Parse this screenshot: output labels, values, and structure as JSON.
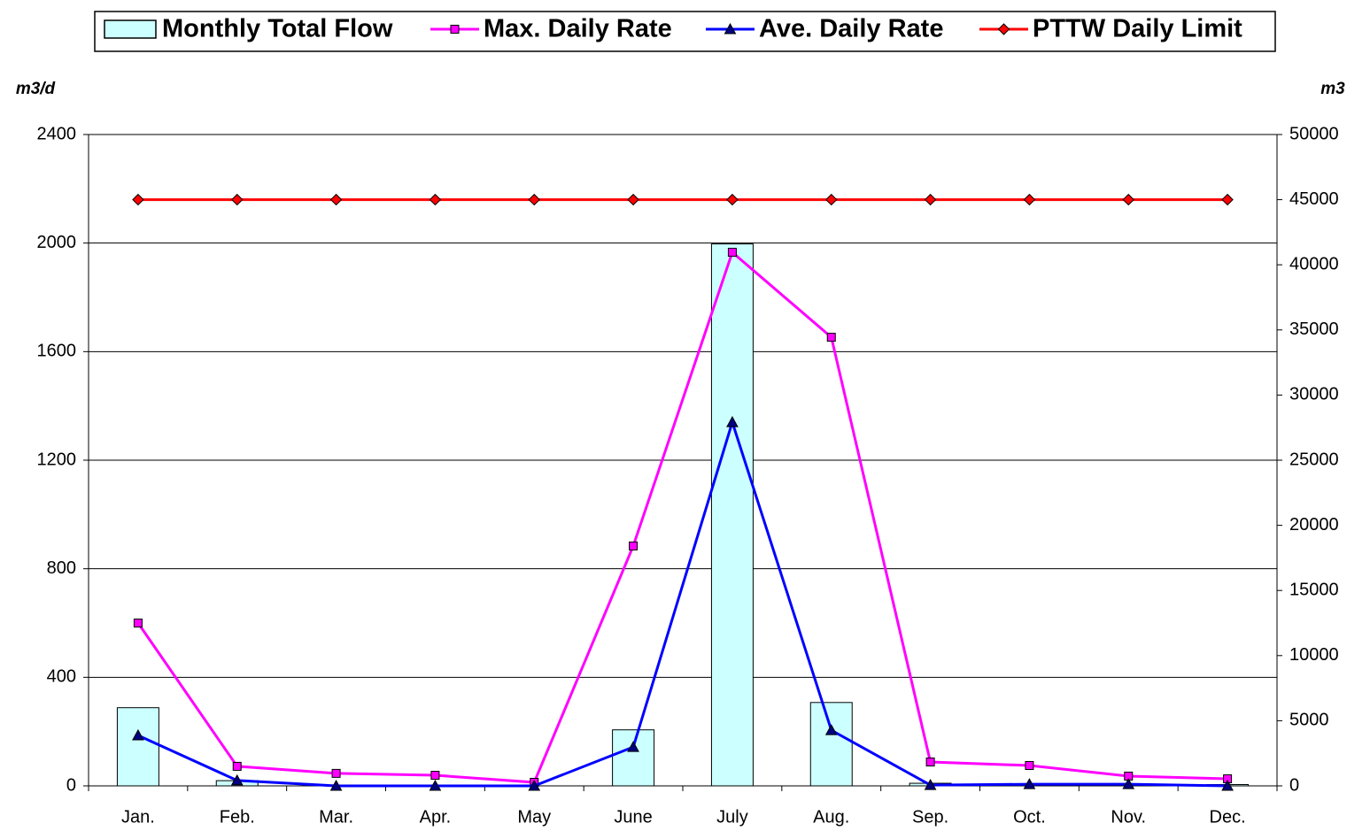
{
  "chart_data": {
    "type": "combo",
    "categories": [
      "Jan.",
      "Feb.",
      "Mar.",
      "Apr.",
      "May",
      "June",
      "July",
      "Aug.",
      "Sep.",
      "Oct.",
      "Nov.",
      "Dec."
    ],
    "y_label": "m3/d",
    "y2_label": "m3",
    "ylim": [
      0,
      2400
    ],
    "yticks": [
      0,
      400,
      800,
      1200,
      1600,
      2000,
      2400
    ],
    "y2lim": [
      0,
      50000
    ],
    "y2ticks": [
      0,
      5000,
      10000,
      15000,
      20000,
      25000,
      30000,
      35000,
      40000,
      45000,
      50000
    ],
    "grid": true,
    "series": [
      {
        "name": "Monthly Total Flow",
        "type": "bar",
        "axis": "y2",
        "color": "#ccffff",
        "values": [
          6000,
          400,
          50,
          0,
          0,
          4300,
          41600,
          6400,
          200,
          0,
          0,
          100
        ]
      },
      {
        "name": "Max. Daily Rate",
        "type": "line",
        "marker": "square",
        "color": "#ff00ff",
        "values": [
          600,
          72,
          46,
          39,
          13,
          884,
          1966,
          1653,
          88,
          75,
          36,
          26
        ]
      },
      {
        "name": "Ave. Daily Rate",
        "type": "line",
        "marker": "triangle",
        "color": "#0000ff",
        "values": [
          186,
          20,
          0,
          0,
          0,
          143,
          1340,
          205,
          3,
          6,
          6,
          0
        ]
      },
      {
        "name": "PTTW Daily Limit",
        "type": "line",
        "marker": "diamond",
        "color": "#ff0000",
        "values": [
          2160,
          2160,
          2160,
          2160,
          2160,
          2160,
          2160,
          2160,
          2160,
          2160,
          2160,
          2160
        ]
      }
    ]
  }
}
